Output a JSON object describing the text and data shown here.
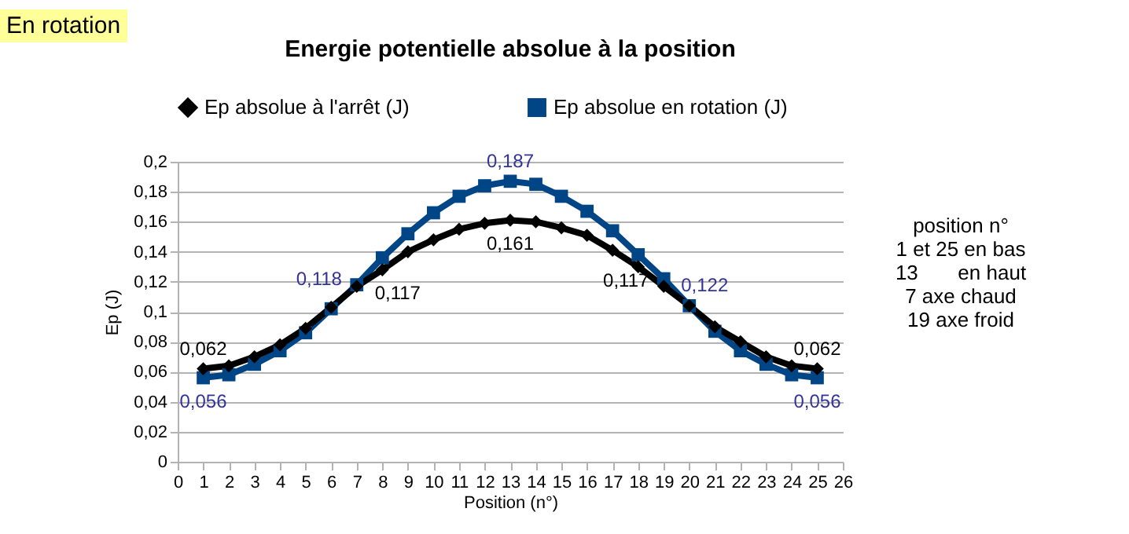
{
  "chart_data": {
    "type": "line",
    "title": "Energie potentielle absolue à la position",
    "xlabel": "Position (n°)",
    "ylabel": "Ep (J)",
    "x": [
      1,
      2,
      3,
      4,
      5,
      6,
      7,
      8,
      9,
      10,
      11,
      12,
      13,
      14,
      15,
      16,
      17,
      18,
      19,
      20,
      21,
      22,
      23,
      24,
      25
    ],
    "series": [
      {
        "name": "Ep absolue à l'arrêt (J)",
        "color": "#000000",
        "marker": "diamond",
        "values": [
          0.062,
          0.064,
          0.07,
          0.078,
          0.089,
          0.103,
          0.117,
          0.128,
          0.14,
          0.148,
          0.155,
          0.159,
          0.161,
          0.16,
          0.156,
          0.151,
          0.141,
          0.13,
          0.117,
          0.104,
          0.09,
          0.08,
          0.07,
          0.064,
          0.062
        ],
        "value_labels": [
          "0,062",
          null,
          null,
          null,
          null,
          null,
          "0,117",
          null,
          null,
          null,
          null,
          null,
          "0,161",
          null,
          null,
          null,
          null,
          null,
          "0,117",
          null,
          null,
          null,
          null,
          null,
          "0,062"
        ]
      },
      {
        "name": "Ep absolue en rotation  (J)",
        "color": "#004586",
        "marker": "square",
        "values": [
          0.056,
          0.058,
          0.065,
          0.074,
          0.086,
          0.102,
          0.118,
          0.136,
          0.152,
          0.166,
          0.177,
          0.184,
          0.187,
          0.185,
          0.177,
          0.167,
          0.154,
          0.138,
          0.122,
          0.104,
          0.087,
          0.074,
          0.065,
          0.058,
          0.056
        ],
        "value_labels": [
          "0,056",
          null,
          null,
          null,
          null,
          null,
          "0,118",
          null,
          null,
          null,
          null,
          null,
          "0,187",
          null,
          null,
          null,
          null,
          null,
          "0,122",
          null,
          null,
          null,
          null,
          null,
          "0,056"
        ]
      }
    ],
    "xlim": [
      0,
      26
    ],
    "xticks": [
      0,
      1,
      2,
      3,
      4,
      5,
      6,
      7,
      8,
      9,
      10,
      11,
      12,
      13,
      14,
      15,
      16,
      17,
      18,
      19,
      20,
      21,
      22,
      23,
      24,
      25,
      26
    ],
    "ylim": [
      0,
      0.2
    ],
    "yticks": [
      0,
      {
        "value": 0.02,
        "label": "0,02"
      },
      {
        "value": 0.04,
        "label": "0,04"
      },
      {
        "value": 0.06,
        "label": "0,06"
      },
      {
        "value": 0.08,
        "label": "0,08"
      },
      {
        "value": 0.1,
        "label": "0,1"
      },
      {
        "value": 0.12,
        "label": "0,12"
      },
      {
        "value": 0.14,
        "label": "0,14"
      },
      {
        "value": 0.16,
        "label": "0,16"
      },
      {
        "value": 0.18,
        "label": "0,18"
      },
      {
        "value": 0.2,
        "label": "0,2"
      }
    ],
    "grid": "y",
    "legend": "top",
    "line_style": "solid",
    "annotations": [
      "En rotation",
      "position n°",
      "1 et 25 en bas",
      "13       en haut",
      "7 axe chaud",
      "19 axe froid"
    ]
  }
}
